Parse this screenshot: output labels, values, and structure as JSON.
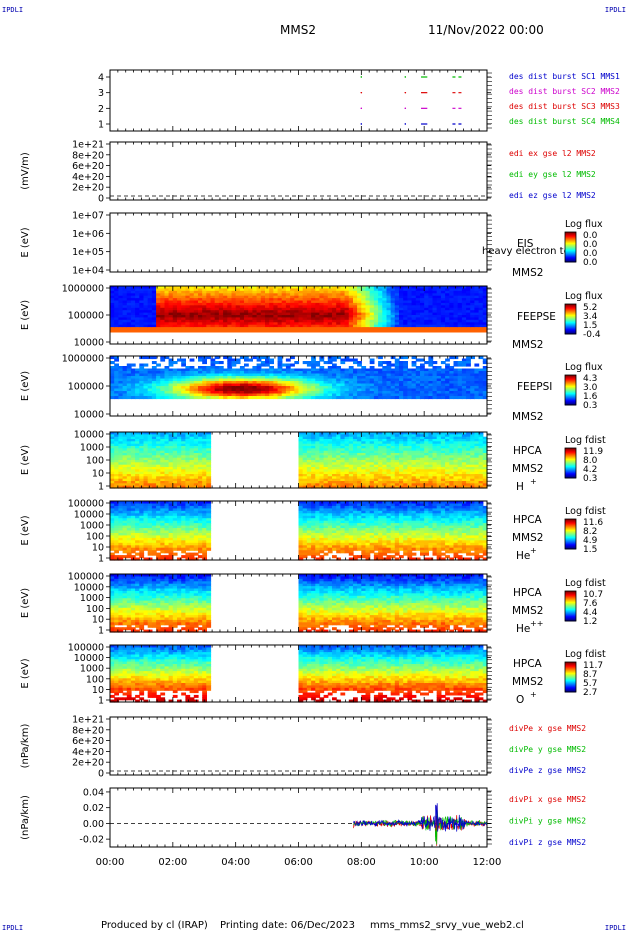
{
  "corner_labels": {
    "top_left": "IPDLI",
    "top_right": "IPDLI",
    "bottom_left": "IPDLI",
    "bottom_right": "IPDLI"
  },
  "header": {
    "spacecraft": "MMS2",
    "datetime": "11/Nov/2022 00:00"
  },
  "footer": {
    "producer": "Produced by cl (IRAP)",
    "printing_date": "Printing date: 06/Dec/2023",
    "script": "mms_mms2_srvy_vue_web2.cl"
  },
  "colors": {
    "sc1": "#0000cc",
    "sc2": "#cc00cc",
    "sc3": "#dd0000",
    "sc4": "#00bb00",
    "dashed": "#000000"
  },
  "chart_data": [
    {
      "type": "line",
      "panel": "burst-availability",
      "yticks": [
        "1",
        "2",
        "3",
        "4"
      ],
      "series": [
        {
          "name": "des dist burst SC1 MMS1",
          "color": "#0000cc"
        },
        {
          "name": "des dist burst SC2 MMS2",
          "color": "#cc00cc"
        },
        {
          "name": "des dist burst SC3 MMS3",
          "color": "#dd0000"
        },
        {
          "name": "des dist burst SC4 MMS4",
          "color": "#00bb00"
        }
      ],
      "segments": [
        {
          "level": 4,
          "color": "#00bb00",
          "x": [
            9.9,
            10.1
          ],
          "dash": false
        },
        {
          "level": 4,
          "color": "#00bb00",
          "x": [
            10.9,
            11.2
          ],
          "dash": true
        },
        {
          "level": 3,
          "color": "#dd0000",
          "x": [
            9.9,
            10.1
          ],
          "dash": false
        },
        {
          "level": 3,
          "color": "#dd0000",
          "x": [
            10.9,
            11.2
          ],
          "dash": true
        },
        {
          "level": 2,
          "color": "#cc00cc",
          "x": [
            9.9,
            10.1
          ],
          "dash": false
        },
        {
          "level": 2,
          "color": "#cc00cc",
          "x": [
            10.9,
            11.2
          ],
          "dash": true
        },
        {
          "level": 1,
          "color": "#0000cc",
          "x": [
            9.9,
            10.1
          ],
          "dash": false
        },
        {
          "level": 1,
          "color": "#0000cc",
          "x": [
            10.9,
            11.2
          ],
          "dash": true
        }
      ]
    },
    {
      "type": "line",
      "panel": "edi-e-field",
      "ylabel": "(mV/m)",
      "yticks": [
        "1e+21",
        "8e+20",
        "6e+20",
        "4e+20",
        "2e+20",
        "0"
      ],
      "series": [
        {
          "name": "edi ex gse l2 MMS2",
          "color": "#dd0000"
        },
        {
          "name": "edi ey gse l2 MMS2",
          "color": "#00bb00"
        },
        {
          "name": "edi ez gse l2 MMS2",
          "color": "#0000cc"
        }
      ]
    },
    {
      "type": "heatmap",
      "panel": "eis",
      "ylabel": "E (eV)",
      "yticks": [
        "1e+07",
        "1e+06",
        "1e+05",
        "1e+04"
      ],
      "labels": [
        "EIS",
        "MMS2"
      ],
      "overlay_text": "heavy electron to",
      "colorbar": {
        "title": "Log flux",
        "ticks": [
          "0.0",
          "0.0",
          "0.0",
          "0.0"
        ]
      }
    },
    {
      "type": "heatmap",
      "panel": "feeps-electron",
      "ylabel": "E (eV)",
      "yticks": [
        "1000000",
        "100000",
        "10000"
      ],
      "labels": [
        "FEEPSE",
        "MMS2"
      ],
      "colorbar": {
        "title": "Log flux",
        "ticks": [
          "5.2",
          "3.4",
          "1.5",
          "-0.4"
        ]
      }
    },
    {
      "type": "heatmap",
      "panel": "feeps-ion",
      "ylabel": "E (eV)",
      "yticks": [
        "1000000",
        "100000",
        "10000"
      ],
      "labels": [
        "FEEPSI",
        "MMS2"
      ],
      "colorbar": {
        "title": "Log flux",
        "ticks": [
          "4.3",
          "3.0",
          "1.6",
          "0.3"
        ]
      }
    },
    {
      "type": "heatmap",
      "panel": "hpca-h",
      "ylabel": "E (eV)",
      "yticks": [
        "10000",
        "1000",
        "100",
        "10",
        "1"
      ],
      "labels": [
        "HPCA",
        "MMS2",
        "H",
        "+"
      ],
      "colorbar": {
        "title": "Log fdist",
        "ticks": [
          "11.9",
          "8.0",
          "4.2",
          "0.3"
        ]
      }
    },
    {
      "type": "heatmap",
      "panel": "hpca-he",
      "ylabel": "E (eV)",
      "yticks": [
        "100000",
        "10000",
        "1000",
        "100",
        "10",
        "1"
      ],
      "labels": [
        "HPCA",
        "MMS2",
        "He",
        "+"
      ],
      "colorbar": {
        "title": "Log fdist",
        "ticks": [
          "11.6",
          "8.2",
          "4.9",
          "1.5"
        ]
      }
    },
    {
      "type": "heatmap",
      "panel": "hpca-hepp",
      "ylabel": "E (eV)",
      "yticks": [
        "100000",
        "10000",
        "1000",
        "100",
        "10",
        "1"
      ],
      "labels": [
        "HPCA",
        "MMS2",
        "He",
        "++"
      ],
      "colorbar": {
        "title": "Log fdist",
        "ticks": [
          "10.7",
          "7.6",
          "4.4",
          "1.2"
        ]
      }
    },
    {
      "type": "heatmap",
      "panel": "hpca-o",
      "ylabel": "E (eV)",
      "yticks": [
        "100000",
        "10000",
        "1000",
        "100",
        "10",
        "1"
      ],
      "labels": [
        "HPCA",
        "MMS2",
        "O",
        "+"
      ],
      "colorbar": {
        "title": "Log fdist",
        "ticks": [
          "11.7",
          "8.7",
          "5.7",
          "2.7"
        ]
      }
    },
    {
      "type": "line",
      "panel": "divpe",
      "ylabel": "(nPa/km)",
      "yticks": [
        "1e+21",
        "8e+20",
        "6e+20",
        "4e+20",
        "2e+20",
        "0"
      ],
      "series": [
        {
          "name": "divPe x gse MMS2",
          "color": "#dd0000"
        },
        {
          "name": "divPe y gse MMS2",
          "color": "#00bb00"
        },
        {
          "name": "divPe z gse MMS2",
          "color": "#0000cc"
        }
      ]
    },
    {
      "type": "line",
      "panel": "divpi",
      "ylabel": "(nPa/km)",
      "yticks": [
        "0.04",
        "0.02",
        "0.00",
        "-0.02"
      ],
      "ylim": [
        -0.03,
        0.045
      ],
      "series": [
        {
          "name": "divPi x gse MMS2",
          "color": "#dd0000"
        },
        {
          "name": "divPi y gse MMS2",
          "color": "#00bb00"
        },
        {
          "name": "divPi z gse MMS2",
          "color": "#0000cc"
        }
      ]
    }
  ],
  "xaxis": {
    "ticks": [
      "00:00",
      "02:00",
      "04:00",
      "06:00",
      "08:00",
      "10:00",
      "12:00"
    ],
    "range_hours": [
      0,
      12
    ]
  }
}
